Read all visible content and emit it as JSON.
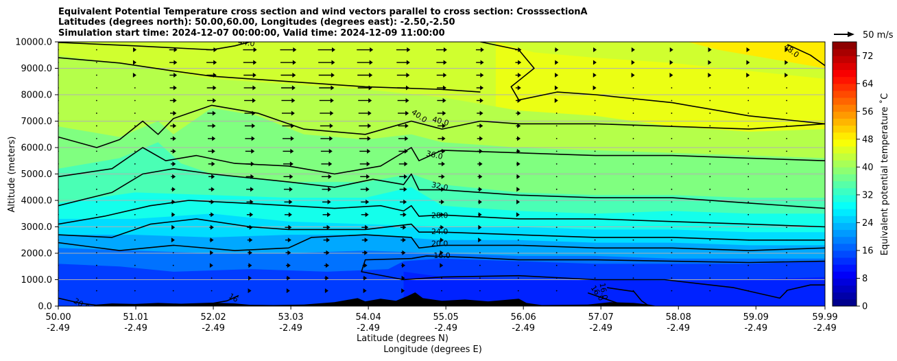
{
  "chart_data": {
    "type": "heatmap",
    "title_lines": [
      "Equivalent Potential Temperature cross section and wind vectors parallel to cross section: CrosssectionA",
      "Latitudes (degrees north): 50.00,60.00, Longitudes (degrees east): -2.50,-2.50",
      "Simulation start time: 2024-12-07 00:00:00, Valid time: 2024-12-09 11:00:00"
    ],
    "xlabel_lines": [
      "Latitude (degrees N)",
      "Longitude (degrees E)"
    ],
    "ylabel": "Altitude (meters)",
    "colorbar_label": "Equivalent potential temperature $^\\circ$C",
    "colorbar_label_display": "Equivalent potential temperature ˚C",
    "quiver_key": "50 m/s",
    "x_ticks": [
      {
        "lat": "50.00",
        "lon": "-2.49"
      },
      {
        "lat": "51.01",
        "lon": "-2.49"
      },
      {
        "lat": "52.02",
        "lon": "-2.49"
      },
      {
        "lat": "53.03",
        "lon": "-2.49"
      },
      {
        "lat": "54.04",
        "lon": "-2.49"
      },
      {
        "lat": "55.05",
        "lon": "-2.49"
      },
      {
        "lat": "56.06",
        "lon": "-2.49"
      },
      {
        "lat": "57.07",
        "lon": "-2.49"
      },
      {
        "lat": "58.08",
        "lon": "-2.49"
      },
      {
        "lat": "59.09",
        "lon": "-2.49"
      },
      {
        "lat": "59.99",
        "lon": "-2.49"
      }
    ],
    "y_ticks": [
      "0.0",
      "1000.0",
      "2000.0",
      "3000.0",
      "4000.0",
      "5000.0",
      "6000.0",
      "7000.0",
      "8000.0",
      "9000.0",
      "10000.0"
    ],
    "ylim": [
      0,
      10000
    ],
    "xlim": [
      50.0,
      59.99
    ],
    "colorbar_ticks": [
      "0",
      "8",
      "16",
      "24",
      "32",
      "40",
      "48",
      "56",
      "64",
      "72"
    ],
    "colorbar_range": [
      0,
      76
    ],
    "grid": "horizontal",
    "contour_levels": [
      16.0,
      20.0,
      24.0,
      28.0,
      32.0,
      36.0,
      40.0,
      44.0,
      48.0
    ],
    "contour_labels": [
      {
        "text": "44.0",
        "lat": 52.45,
        "alt": 9950,
        "rot": 8
      },
      {
        "text": "48.0",
        "lat": 59.55,
        "alt": 9650,
        "rot": 38
      },
      {
        "text": "40.0",
        "lat": 54.7,
        "alt": 7180,
        "rot": 35
      },
      {
        "text": "40.0",
        "lat": 54.98,
        "alt": 6980,
        "rot": 15
      },
      {
        "text": "36.0",
        "lat": 54.9,
        "alt": 5700,
        "rot": 12
      },
      {
        "text": "32.0",
        "lat": 54.97,
        "alt": 4520,
        "rot": 12
      },
      {
        "text": "28.0",
        "lat": 54.97,
        "alt": 3420,
        "rot": 0
      },
      {
        "text": "24.0",
        "lat": 54.97,
        "alt": 2800,
        "rot": 0
      },
      {
        "text": "20.0",
        "lat": 54.97,
        "alt": 2350,
        "rot": 0
      },
      {
        "text": "16.0",
        "lat": 55.0,
        "alt": 1900,
        "rot": 0
      },
      {
        "text": "20.0",
        "lat": 50.3,
        "alt": 50,
        "rot": 30
      },
      {
        "text": "16",
        "lat": 52.28,
        "alt": 300,
        "rot": 30
      },
      {
        "text": "16.0",
        "lat": 57.02,
        "alt": 480,
        "rot": 55
      },
      {
        "text": "16.0",
        "lat": 57.1,
        "alt": 560,
        "rot": 80
      }
    ],
    "colors": {
      "background_warm": "#c8f71a",
      "contour": "#000000",
      "terrain": "#000000",
      "grid": "#b0b0b0"
    }
  }
}
